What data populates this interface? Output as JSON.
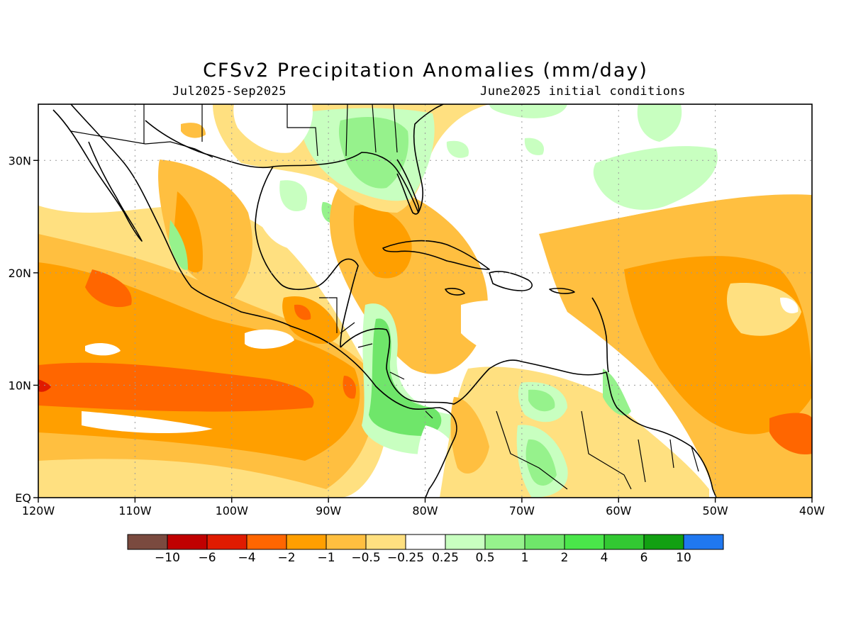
{
  "header": {
    "title": "CFSv2 Precipitation Anomalies (mm/day)",
    "period": "Jul2025-Sep2025",
    "init": "June2025 initial conditions"
  },
  "map": {
    "lon_range": [
      -120,
      -40
    ],
    "lat_range": [
      0,
      35
    ],
    "grid": true,
    "x_ticks": [
      {
        "lon": -120,
        "label": "120W"
      },
      {
        "lon": -110,
        "label": "110W"
      },
      {
        "lon": -100,
        "label": "100W"
      },
      {
        "lon": -90,
        "label": "90W"
      },
      {
        "lon": -80,
        "label": "80W"
      },
      {
        "lon": -70,
        "label": "70W"
      },
      {
        "lon": -60,
        "label": "60W"
      },
      {
        "lon": -50,
        "label": "50W"
      },
      {
        "lon": -40,
        "label": "40W"
      }
    ],
    "y_ticks": [
      {
        "lat": 0,
        "label": "EQ"
      },
      {
        "lat": 10,
        "label": "10N"
      },
      {
        "lat": 20,
        "label": "20N"
      },
      {
        "lat": 30,
        "label": "30N"
      }
    ]
  },
  "colorbar": {
    "colors": [
      "#7a4a3f",
      "#c00000",
      "#e01b00",
      "#ff6600",
      "#ff9f00",
      "#ffbf40",
      "#ffe080",
      "#ffffff",
      "#c8ffc0",
      "#96f28c",
      "#6fe66a",
      "#4ae64a",
      "#32c832",
      "#12a012",
      "#2078f0"
    ],
    "labels": [
      "-10",
      "-6",
      "-4",
      "-2",
      "-1",
      "-0.5",
      "-0.25",
      "0.25",
      "0.5",
      "1",
      "2",
      "4",
      "6",
      "10"
    ]
  },
  "palette": {
    "dry_strong": "#ff6600",
    "dry_moderate": "#ff9f00",
    "dry_weak": "#ffbf40",
    "dry_slight": "#ffe080",
    "wet_slight": "#c8ffc0",
    "wet_weak": "#96f28c",
    "wet_moderate": "#6fe66a"
  }
}
